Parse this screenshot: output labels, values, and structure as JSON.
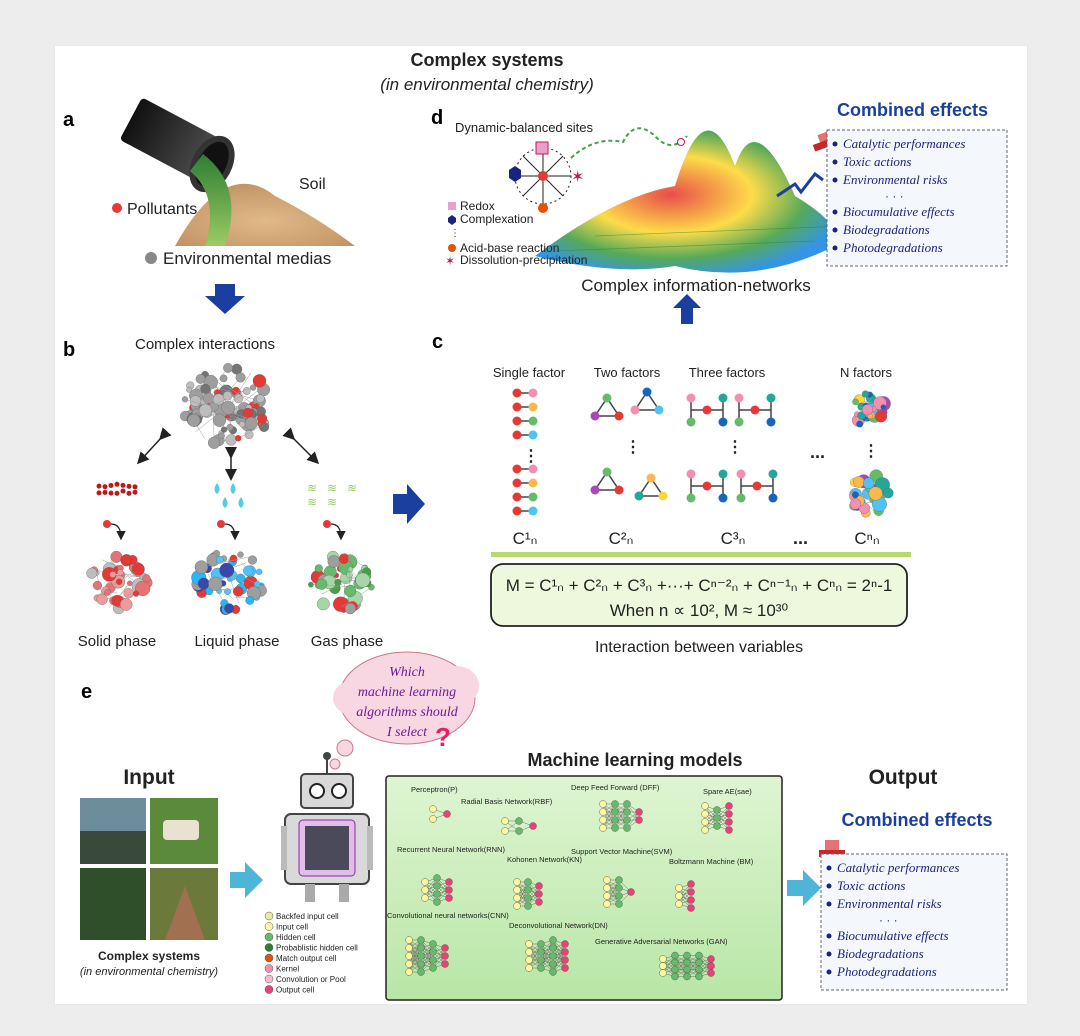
{
  "title": "Complex systems",
  "subtitle": "(in environmental chemistry)",
  "panels": {
    "a": {
      "letter": "a",
      "soil_label": "Soil",
      "pollutants_label": "Pollutants",
      "media_label": "Environmental medias"
    },
    "b": {
      "letter": "b",
      "heading": "Complex interactions",
      "phases": [
        "Solid phase",
        "Liquid phase",
        "Gas phase"
      ]
    },
    "c": {
      "letter": "c",
      "factor_headers": [
        "Single factor",
        "Two factors",
        "Three factors",
        "N factors"
      ],
      "comb_labels": [
        "C¹ₙ",
        "C²ₙ",
        "C³ₙ",
        "Cⁿₙ"
      ],
      "ellipsis": "...",
      "formula_line1": "M = C¹ₙ + C²ₙ + C³ₙ +···+ Cⁿ⁻²ₙ + Cⁿ⁻¹ₙ + Cⁿₙ = 2ⁿ-1",
      "formula_line2": "When n ∝ 10², M ≈ 10³⁰",
      "caption": "Interaction between variables"
    },
    "d": {
      "letter": "d",
      "sites_label": "Dynamic-balanced sites",
      "legend": [
        {
          "label": "Redox",
          "color": "#e8a0c8"
        },
        {
          "label": "Complexation",
          "color": "#1a237e"
        },
        {
          "label": "Acid-base reaction",
          "color": "#e65100"
        },
        {
          "label": "Dissolution-precipitation",
          "color": "#c2185b"
        }
      ],
      "network_label": "Complex information-networks",
      "effects_title": "Combined effects",
      "effects": [
        "Catalytic performances",
        "Toxic actions",
        "Environmental risks",
        "Biocumulative effects",
        "Biodegradations",
        "Photodegradations"
      ],
      "effects_dots": "· · ·"
    },
    "e": {
      "letter": "e",
      "input_label": "Input",
      "output_label": "Output",
      "bubble_text": [
        "Which",
        "machine learning",
        "algorithms should",
        "I select"
      ],
      "bubble_mark": "?",
      "ml_title": "Machine learning models",
      "models": [
        "Perceptron(P)",
        "Deep Feed Forward (DFF)",
        "Spare AE(sae)",
        "Radial Basis Network(RBF)",
        "Recurrent Neural Network(RNN)",
        "Support Vector Machine(SVM)",
        "Kohonen Network(KN)",
        "Boltzmann Machine (BM)",
        "Convolutional neural networks(CNN)",
        "Deconvolutional Network(DN)",
        "Generative Adversarial Networks (GAN)"
      ],
      "cell_legend": [
        {
          "label": "Backfed input cell",
          "color": "#e6ee9c"
        },
        {
          "label": "Input cell",
          "color": "#fff59d"
        },
        {
          "label": "Hidden cell",
          "color": "#66bb6a"
        },
        {
          "label": "Probablistic hidden cell",
          "color": "#2e7d32"
        },
        {
          "label": "Match output cell",
          "color": "#e65100"
        },
        {
          "label": "Kernel",
          "color": "#f48fb1"
        },
        {
          "label": "Convolution or Pool",
          "color": "#f8bbd0"
        },
        {
          "label": "Output cell",
          "color": "#ec407a"
        }
      ],
      "input_caption": "Complex systems",
      "input_caption2": "(in environmental chemistry)",
      "effects_title": "Combined effects",
      "effects": [
        "Catalytic performances",
        "Toxic actions",
        "Environmental risks",
        "Biocumulative effects",
        "Biodegradations",
        "Photodegradations"
      ],
      "effects_dots": "· · ·"
    }
  }
}
